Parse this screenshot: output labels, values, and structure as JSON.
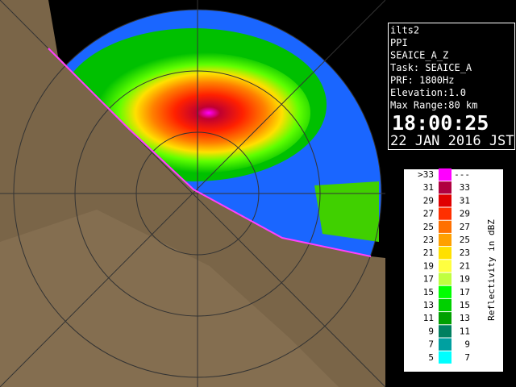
{
  "info": {
    "lines": [
      "ilts2",
      "PPI",
      "SEAICE_A_Z",
      "Task: SEAICE_A",
      "PRF: 1800Hz",
      "Elevation:1.0",
      "Max Range:80 km"
    ],
    "time": "18:00:25",
    "date": "22 JAN 2016 JST"
  },
  "legend": {
    "title": "Reflectivity in dBZ",
    "rows": [
      {
        "low": ">33",
        "high": "---",
        "color": "#ff00ff"
      },
      {
        "low": "31",
        "high": "33",
        "color": "#b00040"
      },
      {
        "low": "29",
        "high": "31",
        "color": "#e00000"
      },
      {
        "low": "27",
        "high": "29",
        "color": "#ff3000"
      },
      {
        "low": "25",
        "high": "27",
        "color": "#ff7000"
      },
      {
        "low": "23",
        "high": "25",
        "color": "#ffa000"
      },
      {
        "low": "21",
        "high": "23",
        "color": "#ffe000"
      },
      {
        "low": "19",
        "high": "21",
        "color": "#ffff40"
      },
      {
        "low": "17",
        "high": "19",
        "color": "#c0ff40"
      },
      {
        "low": "15",
        "high": "17",
        "color": "#00ff00"
      },
      {
        "low": "13",
        "high": "15",
        "color": "#00d000"
      },
      {
        "low": "11",
        "high": "13",
        "color": "#00a000"
      },
      {
        "low": "9",
        "high": "11",
        "color": "#008060"
      },
      {
        "low": "7",
        "high": "9",
        "color": "#00a0a0"
      },
      {
        "low": "5",
        "high": "7",
        "color": "#00ffff"
      }
    ]
  }
}
